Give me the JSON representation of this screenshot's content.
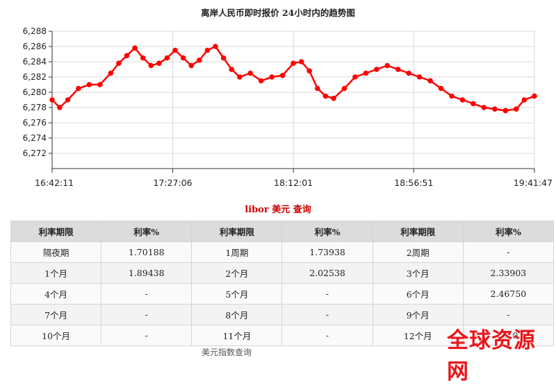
{
  "chart_data": {
    "type": "line",
    "title": "离岸人民币即时报价 24小时内的趋势图",
    "y_ticks": [
      "6,288",
      "6,286",
      "6,284",
      "6,282",
      "6,280",
      "6,278",
      "6,276",
      "6,274",
      "6,272"
    ],
    "x_ticks": [
      "16:42:11",
      "17:27:06",
      "18:12:01",
      "18:56:51",
      "19:41:47"
    ],
    "ylim": [
      6270,
      6288
    ],
    "grid": true,
    "color": "#ff0000",
    "series": [
      {
        "x": [
          "16:42:11",
          "16:45:00",
          "16:48:00",
          "16:52:00",
          "16:56:00",
          "17:00:00",
          "17:04:00",
          "17:07:00",
          "17:10:00",
          "17:13:00",
          "17:16:00",
          "17:19:00",
          "17:22:00",
          "17:25:00",
          "17:28:00",
          "17:31:00",
          "17:34:00",
          "17:37:00",
          "17:40:00",
          "17:43:00",
          "17:46:00",
          "17:49:00",
          "17:52:00",
          "17:56:00",
          "18:00:00",
          "18:04:00",
          "18:08:00",
          "18:12:00",
          "18:15:00",
          "18:18:00",
          "18:21:00",
          "18:24:00",
          "18:27:00",
          "18:31:00",
          "18:35:00",
          "18:39:00",
          "18:43:00",
          "18:47:00",
          "18:51:00",
          "18:55:00",
          "18:59:00",
          "19:03:00",
          "19:07:00",
          "19:11:00",
          "19:15:00",
          "19:19:00",
          "19:23:00",
          "19:27:00",
          "19:31:00",
          "19:35:00",
          "19:38:00",
          "19:41:47"
        ],
        "y": [
          6279.0,
          6278.0,
          6279.0,
          6280.5,
          6281.0,
          6281.0,
          6282.5,
          6283.8,
          6284.8,
          6285.8,
          6284.5,
          6283.5,
          6283.8,
          6284.5,
          6285.5,
          6284.5,
          6283.5,
          6284.2,
          6285.5,
          6286.0,
          6284.5,
          6283.0,
          6282.0,
          6282.5,
          6281.5,
          6282.0,
          6282.2,
          6283.8,
          6284.0,
          6282.8,
          6280.5,
          6279.5,
          6279.2,
          6280.5,
          6282.0,
          6282.5,
          6283.0,
          6283.5,
          6283.0,
          6282.5,
          6282.0,
          6281.5,
          6280.5,
          6279.5,
          6279.0,
          6278.5,
          6278.0,
          6277.8,
          6277.6,
          6277.8,
          6279.0,
          6279.5
        ]
      }
    ]
  },
  "libor": {
    "title": "libor 美元 查询",
    "headers": [
      "利率期限",
      "利率%",
      "利率期限",
      "利率%",
      "利率期限",
      "利率%"
    ],
    "rows": [
      [
        "隔夜期",
        "1.70188",
        "1周期",
        "1.73938",
        "2周期",
        "-"
      ],
      [
        "1个月",
        "1.89438",
        "2个月",
        "2.02538",
        "3个月",
        "2.33903"
      ],
      [
        "4个月",
        "-",
        "5个月",
        "-",
        "6个月",
        "2.46750"
      ],
      [
        "7个月",
        "-",
        "8个月",
        "-",
        "9个月",
        "-"
      ],
      [
        "10个月",
        "-",
        "11个月",
        "-",
        "12个月",
        "2.70"
      ]
    ],
    "footer": "美元指数查询"
  },
  "watermark": "全球资源网"
}
